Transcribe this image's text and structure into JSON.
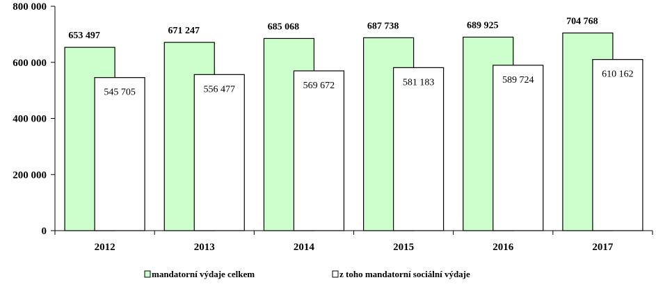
{
  "chart_data": {
    "type": "bar",
    "categories": [
      "2012",
      "2013",
      "2014",
      "2015",
      "2016",
      "2017"
    ],
    "series": [
      {
        "name": "mandatorní výdaje celkem",
        "values": [
          653497,
          671247,
          685068,
          687738,
          689925,
          704768
        ],
        "labels": [
          "653 497",
          "671 247",
          "685 068",
          "687 738",
          "689 925",
          "704 768"
        ],
        "color": "#CCFFCC"
      },
      {
        "name": "z toho mandatorní sociální výdaje",
        "values": [
          545705,
          556477,
          569672,
          581183,
          589724,
          610162
        ],
        "labels": [
          "545 705",
          "556 477",
          "569 672",
          "581 183",
          "589 724",
          "610 162"
        ],
        "color": "#FFFFFF"
      }
    ],
    "title": "",
    "xlabel": "",
    "ylabel": "",
    "ylim": [
      0,
      800000
    ],
    "yticks": [
      0,
      200000,
      400000,
      600000,
      800000
    ],
    "ytick_labels": [
      "0",
      "200 000",
      "400 000",
      "600 000",
      "800 000"
    ],
    "grid": false,
    "legend": "bottom-center",
    "axis_color": "#000000"
  }
}
